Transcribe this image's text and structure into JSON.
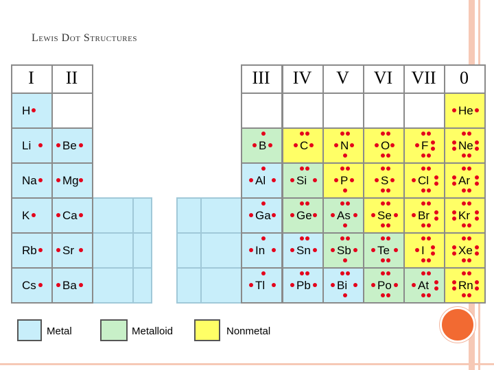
{
  "title": "Lewis Dot Structures",
  "groups": [
    "I",
    "II",
    "III",
    "IV",
    "V",
    "VI",
    "VII",
    "0"
  ],
  "elements": [
    {
      "sym": "H",
      "col": 0,
      "row": 0,
      "cat": "metal",
      "dots": 1
    },
    {
      "sym": "Li",
      "col": 0,
      "row": 1,
      "cat": "metal",
      "dots": 1
    },
    {
      "sym": "Na",
      "col": 0,
      "row": 2,
      "cat": "metal",
      "dots": 1
    },
    {
      "sym": "K",
      "col": 0,
      "row": 3,
      "cat": "metal",
      "dots": 1
    },
    {
      "sym": "Rb",
      "col": 0,
      "row": 4,
      "cat": "metal",
      "dots": 1
    },
    {
      "sym": "Cs",
      "col": 0,
      "row": 5,
      "cat": "metal",
      "dots": 1
    },
    {
      "sym": "Be",
      "col": 1,
      "row": 1,
      "cat": "metal",
      "dots": 2
    },
    {
      "sym": "Mg",
      "col": 1,
      "row": 2,
      "cat": "metal",
      "dots": 2
    },
    {
      "sym": "Ca",
      "col": 1,
      "row": 3,
      "cat": "metal",
      "dots": 2
    },
    {
      "sym": "Sr",
      "col": 1,
      "row": 4,
      "cat": "metal",
      "dots": 2
    },
    {
      "sym": "Ba",
      "col": 1,
      "row": 5,
      "cat": "metal",
      "dots": 2
    },
    {
      "sym": "B",
      "col": 2,
      "row": 1,
      "cat": "metalloid",
      "dots": 3
    },
    {
      "sym": "Al",
      "col": 2,
      "row": 2,
      "cat": "metal",
      "dots": 3
    },
    {
      "sym": "Ga",
      "col": 2,
      "row": 3,
      "cat": "metal",
      "dots": 3
    },
    {
      "sym": "In",
      "col": 2,
      "row": 4,
      "cat": "metal",
      "dots": 3
    },
    {
      "sym": "Tl",
      "col": 2,
      "row": 5,
      "cat": "metal",
      "dots": 3
    },
    {
      "sym": "C",
      "col": 3,
      "row": 1,
      "cat": "nonmetal",
      "dots": 4
    },
    {
      "sym": "Si",
      "col": 3,
      "row": 2,
      "cat": "metalloid",
      "dots": 4
    },
    {
      "sym": "Ge",
      "col": 3,
      "row": 3,
      "cat": "metalloid",
      "dots": 4
    },
    {
      "sym": "Sn",
      "col": 3,
      "row": 4,
      "cat": "metal",
      "dots": 4
    },
    {
      "sym": "Pb",
      "col": 3,
      "row": 5,
      "cat": "metal",
      "dots": 4
    },
    {
      "sym": "N",
      "col": 4,
      "row": 1,
      "cat": "nonmetal",
      "dots": 5
    },
    {
      "sym": "P",
      "col": 4,
      "row": 2,
      "cat": "nonmetal",
      "dots": 5
    },
    {
      "sym": "As",
      "col": 4,
      "row": 3,
      "cat": "metalloid",
      "dots": 5
    },
    {
      "sym": "Sb",
      "col": 4,
      "row": 4,
      "cat": "metalloid",
      "dots": 5
    },
    {
      "sym": "Bi",
      "col": 4,
      "row": 5,
      "cat": "metal",
      "dots": 5
    },
    {
      "sym": "O",
      "col": 5,
      "row": 1,
      "cat": "nonmetal",
      "dots": 6
    },
    {
      "sym": "S",
      "col": 5,
      "row": 2,
      "cat": "nonmetal",
      "dots": 6
    },
    {
      "sym": "Se",
      "col": 5,
      "row": 3,
      "cat": "nonmetal",
      "dots": 6
    },
    {
      "sym": "Te",
      "col": 5,
      "row": 4,
      "cat": "metalloid",
      "dots": 6
    },
    {
      "sym": "Po",
      "col": 5,
      "row": 5,
      "cat": "metalloid",
      "dots": 6
    },
    {
      "sym": "F",
      "col": 6,
      "row": 1,
      "cat": "nonmetal",
      "dots": 7
    },
    {
      "sym": "Cl",
      "col": 6,
      "row": 2,
      "cat": "nonmetal",
      "dots": 7
    },
    {
      "sym": "Br",
      "col": 6,
      "row": 3,
      "cat": "nonmetal",
      "dots": 7
    },
    {
      "sym": "I",
      "col": 6,
      "row": 4,
      "cat": "nonmetal",
      "dots": 7
    },
    {
      "sym": "At",
      "col": 6,
      "row": 5,
      "cat": "metalloid",
      "dots": 7
    },
    {
      "sym": "He",
      "col": 7,
      "row": 0,
      "cat": "nonmetal",
      "dots": 2
    },
    {
      "sym": "Ne",
      "col": 7,
      "row": 1,
      "cat": "nonmetal",
      "dots": 8
    },
    {
      "sym": "Ar",
      "col": 7,
      "row": 2,
      "cat": "nonmetal",
      "dots": 8
    },
    {
      "sym": "Kr",
      "col": 7,
      "row": 3,
      "cat": "nonmetal",
      "dots": 8
    },
    {
      "sym": "Xe",
      "col": 7,
      "row": 4,
      "cat": "nonmetal",
      "dots": 8
    },
    {
      "sym": "Rn",
      "col": 7,
      "row": 5,
      "cat": "nonmetal",
      "dots": 8
    }
  ],
  "colors": {
    "metal": "#c8eefa",
    "metalloid": "#c8f0c8",
    "nonmetal": "#ffff66",
    "dot": "#e4001b",
    "accent_circle": "#f26a32",
    "frame": "#f6c9b6"
  },
  "legend": [
    {
      "label": "Metal",
      "cat": "metal"
    },
    {
      "label": "Metalloid",
      "cat": "metalloid"
    },
    {
      "label": "Nonmetal",
      "cat": "nonmetal"
    }
  ]
}
